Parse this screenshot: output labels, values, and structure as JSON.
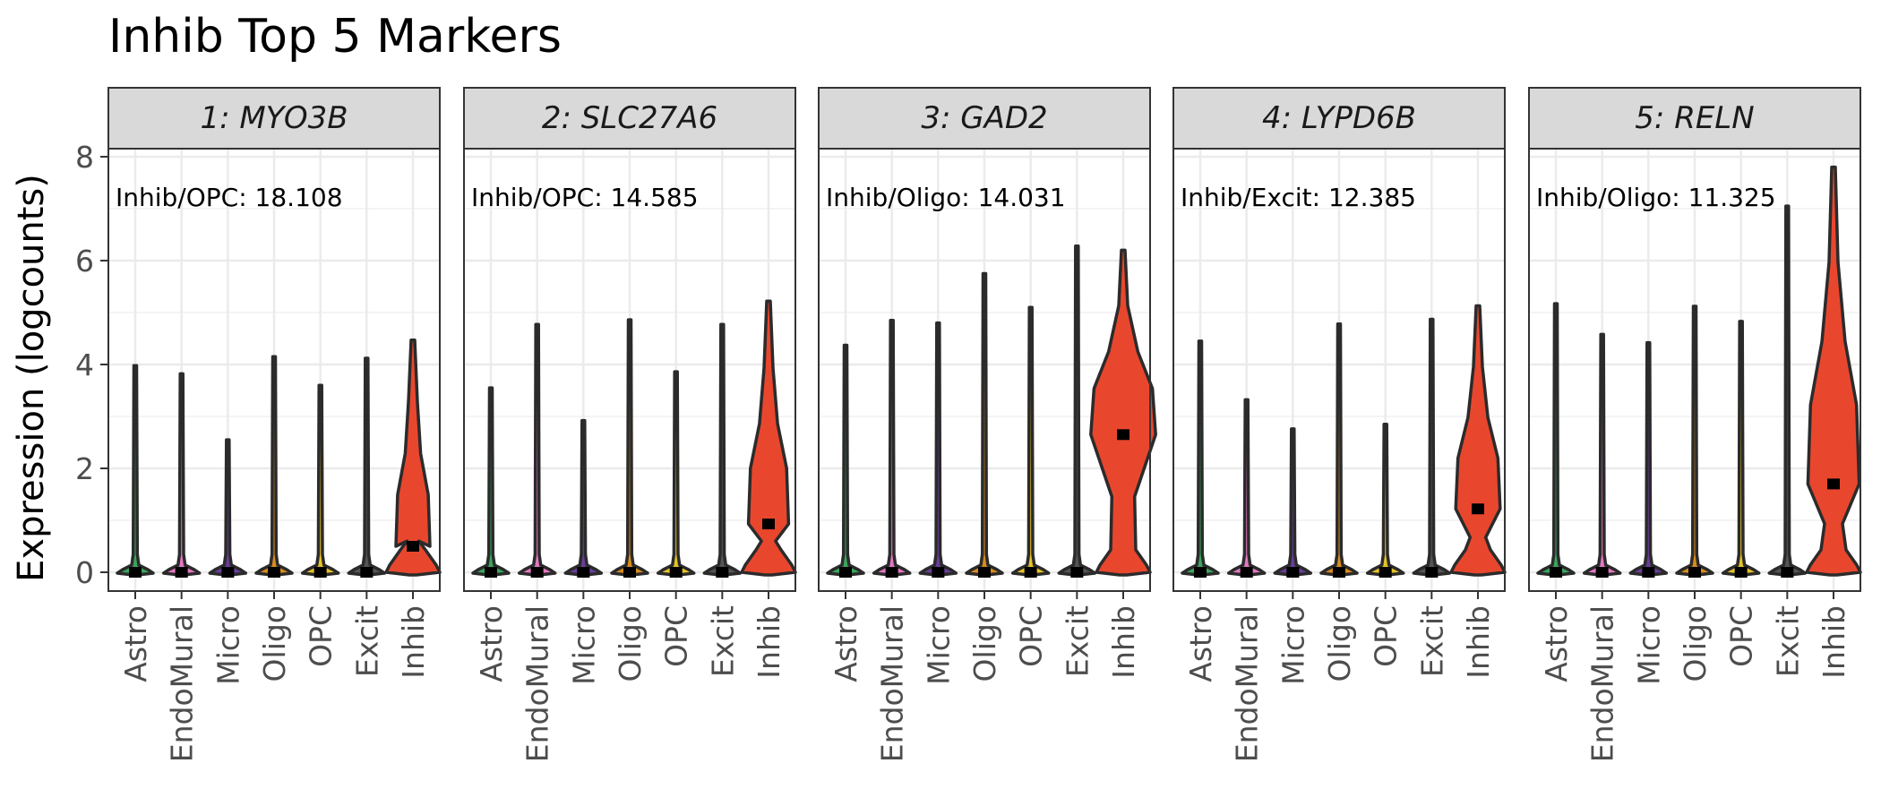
{
  "chart_data": {
    "type": "violin",
    "title": "Inhib Top 5 Markers",
    "ylabel": "Expression (logcounts)",
    "ylim": [
      -0.35,
      8.3
    ],
    "yticks": [
      0,
      2,
      4,
      6,
      8
    ],
    "grid": true,
    "categories": [
      "Astro",
      "EndoMural",
      "Micro",
      "Oligo",
      "OPC",
      "Excit",
      "Inhib"
    ],
    "colors": {
      "Astro": "#3BA55C",
      "EndoMural": "#E377C2",
      "Micro": "#6A3D9A",
      "Oligo": "#D98C1E",
      "OPC": "#E6C229",
      "Excit": "#555555",
      "Inhib": "#E8472E"
    },
    "panels": [
      {
        "strip": "1: MYO3B",
        "annotation": "Inhib/OPC: 18.108",
        "max": [
          3.98,
          3.82,
          2.55,
          4.15,
          3.6,
          4.12,
          4.47
        ],
        "median": [
          0,
          0,
          0,
          0,
          0,
          0,
          0.5
        ]
      },
      {
        "strip": "2: SLC27A6",
        "annotation": "Inhib/OPC: 14.585",
        "max": [
          3.55,
          4.77,
          2.92,
          4.86,
          3.86,
          4.77,
          5.22
        ],
        "median": [
          0,
          0,
          0,
          0,
          0,
          0,
          0.93
        ]
      },
      {
        "strip": "3: GAD2",
        "annotation": "Inhib/Oligo: 14.031",
        "max": [
          4.37,
          4.85,
          4.8,
          5.75,
          5.1,
          6.28,
          6.2
        ],
        "median": [
          0,
          0,
          0,
          0,
          0,
          0,
          2.65
        ]
      },
      {
        "strip": "4: LYPD6B",
        "annotation": "Inhib/Excit: 12.385",
        "max": [
          4.45,
          3.32,
          2.76,
          4.78,
          2.85,
          4.87,
          5.13
        ],
        "median": [
          0,
          0,
          0,
          0,
          0,
          0,
          1.22
        ]
      },
      {
        "strip": "5: RELN",
        "annotation": "Inhib/Oligo: 11.325",
        "max": [
          5.17,
          4.58,
          4.42,
          5.12,
          4.83,
          7.05,
          7.8
        ],
        "median": [
          0,
          0,
          0,
          0,
          0,
          0,
          1.7
        ]
      }
    ]
  }
}
